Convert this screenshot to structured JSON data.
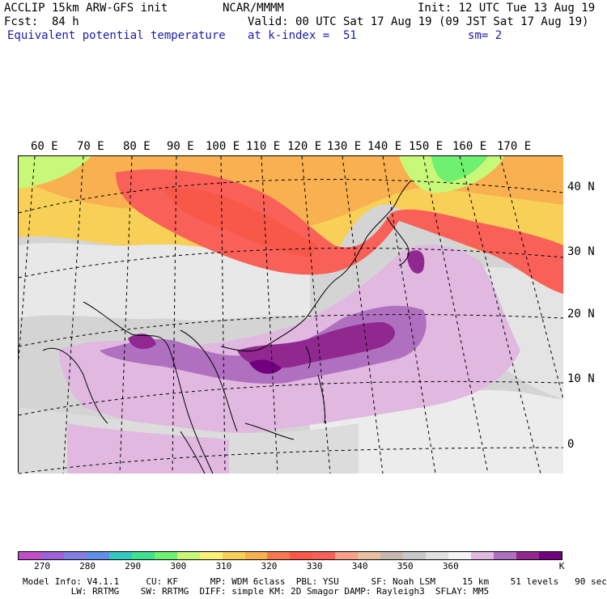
{
  "header": {
    "model": "ACCLIP 15km ARW-GFS init",
    "org": "NCAR/MMMM",
    "init": "Init: 12 UTC Tue 13 Aug 19",
    "fcst": "Fcst:  84 h",
    "valid": "Valid: 00 UTC Sat 17 Aug 19 (09 JST Sat 17 Aug 19)",
    "variable": "Equivalent potential temperature",
    "level": "at k-index =  51",
    "smoothing": "sm= 2"
  },
  "map": {
    "lon_labels": [
      "60 E",
      "70 E",
      "80 E",
      "90 E",
      "100 E",
      "110 E",
      "120 E",
      "130 E",
      "140 E",
      "150 E",
      "160 E",
      "170 E"
    ],
    "lat_labels": [
      "40 N",
      "30 N",
      "20 N",
      "10 N",
      "0"
    ]
  },
  "legend": {
    "colors": [
      "#c050c8",
      "#a060d8",
      "#8080e0",
      "#6090e8",
      "#30c8c0",
      "#40e090",
      "#70f070",
      "#c8f878",
      "#f8f078",
      "#f8d058",
      "#f8b050",
      "#f87850",
      "#f85848",
      "#f86058",
      "#f8a088",
      "#e8c0a0",
      "#c8b8b0",
      "#c8c8c8",
      "#e0e0e0",
      "#f4f4f4",
      "#e0b8e0",
      "#b070c0",
      "#902890",
      "#700080"
    ],
    "ticks": [
      "270",
      "280",
      "290",
      "300",
      "310",
      "320",
      "330",
      "340",
      "350",
      "360"
    ],
    "unit": "K"
  },
  "footer": {
    "line1": "Model Info: V4.1.1     CU: KF      MP: WDM 6class  PBL: YSU      SF: Noah LSM     15 km    51 levels   90 sec",
    "line2": "         LW: RRTMG    SW: RRTMG  DIFF: simple KM: 2D Smagor DAMP: Rayleigh3  SFLAY: MM5"
  }
}
